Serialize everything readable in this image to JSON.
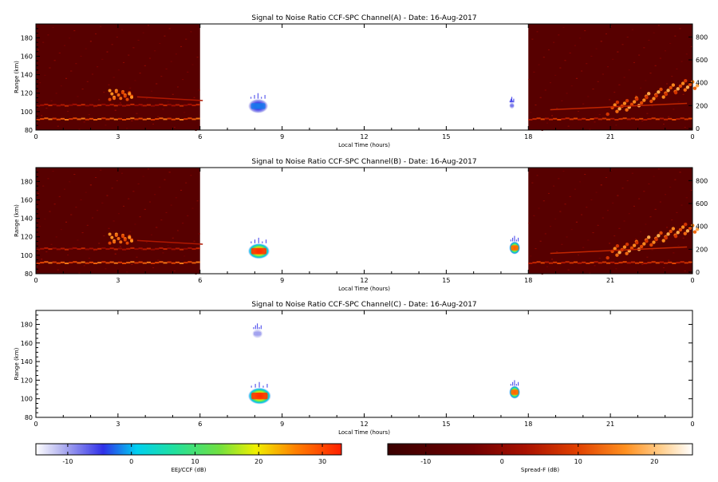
{
  "chart_data": [
    {
      "type": "heatmap",
      "title": "Signal to Noise Ratio CCF-SPC Channel(A) - Date: 16-Aug-2017",
      "xlabel": "Local Time (hours)",
      "ylabel": "Range (km)",
      "xlim": [
        0,
        24
      ],
      "ylim": [
        80,
        195
      ],
      "x_ticks": [
        "0",
        "3",
        "6",
        "9",
        "12",
        "15",
        "18",
        "21",
        "0"
      ],
      "y_ticks": [
        "80",
        "100",
        "120",
        "140",
        "160",
        "180"
      ],
      "y2_ticks": [
        "0",
        "200",
        "400",
        "600",
        "800"
      ],
      "spread_f_background": [
        [
          0,
          6
        ],
        [
          18,
          24
        ]
      ],
      "eej_echoes": [
        {
          "x0": 7.75,
          "x1": 8.5,
          "y0": 98,
          "y1": 114,
          "peak_db": -2
        },
        {
          "x0": 17.3,
          "x1": 17.5,
          "y0": 103,
          "y1": 110,
          "peak_db": -8
        }
      ],
      "spread_f_traces": [
        {
          "kind": "layer",
          "x0": 0,
          "x1": 6,
          "y": 92,
          "level": 8
        },
        {
          "kind": "layer",
          "x0": 0,
          "x1": 6,
          "y": 107,
          "level": 0
        },
        {
          "kind": "blob",
          "x": 3.1,
          "y": 118,
          "level": 10
        },
        {
          "kind": "layer",
          "x0": 18,
          "x1": 24,
          "y": 92,
          "level": 4
        },
        {
          "kind": "plume",
          "x": 22.3,
          "y": 110,
          "level": 14
        }
      ]
    },
    {
      "type": "heatmap",
      "title": "Signal to Noise Ratio CCF-SPC Channel(B) - Date: 16-Aug-2017",
      "xlabel": "Local Time (hours)",
      "ylabel": "Range (km)",
      "xlim": [
        0,
        24
      ],
      "ylim": [
        80,
        195
      ],
      "x_ticks": [
        "0",
        "3",
        "6",
        "9",
        "12",
        "15",
        "18",
        "21",
        "0"
      ],
      "y_ticks": [
        "80",
        "100",
        "120",
        "140",
        "160",
        "180"
      ],
      "y2_ticks": [
        "0",
        "200",
        "400",
        "600",
        "800"
      ],
      "spread_f_background": [
        [
          0,
          6
        ],
        [
          18,
          24
        ]
      ],
      "eej_echoes": [
        {
          "x0": 7.75,
          "x1": 8.55,
          "y0": 96,
          "y1": 113,
          "peak_db": 32
        },
        {
          "x0": 17.3,
          "x1": 17.7,
          "y0": 101,
          "y1": 115,
          "peak_db": 28
        }
      ],
      "spread_f_traces": [
        {
          "kind": "layer",
          "x0": 0,
          "x1": 6,
          "y": 92,
          "level": 8
        },
        {
          "kind": "layer",
          "x0": 0,
          "x1": 6,
          "y": 107,
          "level": 0
        },
        {
          "kind": "blob",
          "x": 3.1,
          "y": 118,
          "level": 10
        },
        {
          "kind": "layer",
          "x0": 18,
          "x1": 24,
          "y": 92,
          "level": 4
        },
        {
          "kind": "plume",
          "x": 22.3,
          "y": 110,
          "level": 14
        }
      ]
    },
    {
      "type": "heatmap",
      "title": "Signal to Noise Ratio CCF-SPC Channel(C) - Date: 16-Aug-2017",
      "xlabel": "Local Time (hours)",
      "ylabel": "Range (km)",
      "xlim": [
        0,
        24
      ],
      "ylim": [
        80,
        195
      ],
      "x_ticks": [
        "0",
        "3",
        "6",
        "9",
        "12",
        "15",
        "18",
        "21",
        "0"
      ],
      "y_ticks": [
        "80",
        "100",
        "120",
        "140",
        "160",
        "180"
      ],
      "y2_ticks": [],
      "spread_f_background": [],
      "eej_echoes": [
        {
          "x0": 7.75,
          "x1": 8.6,
          "y0": 94,
          "y1": 112,
          "peak_db": 32
        },
        {
          "x0": 17.3,
          "x1": 17.7,
          "y0": 100,
          "y1": 114,
          "peak_db": 28
        },
        {
          "x0": 7.9,
          "x1": 8.3,
          "y0": 165,
          "y1": 175,
          "peak_db": -10
        }
      ],
      "spread_f_traces": []
    }
  ],
  "colorbars": [
    {
      "label": "EEJ/CCF (dB)",
      "min": -15,
      "max": 33,
      "ticks": [
        "-10",
        "0",
        "10",
        "20",
        "30"
      ],
      "tick_values": [
        -10,
        0,
        10,
        20,
        30
      ],
      "scale": "eej"
    },
    {
      "label": "Spread-F (dB)",
      "min": -15,
      "max": 25,
      "ticks": [
        "-10",
        "0",
        "10",
        "20"
      ],
      "tick_values": [
        -10,
        0,
        10,
        20
      ],
      "scale": "spreadf"
    }
  ]
}
